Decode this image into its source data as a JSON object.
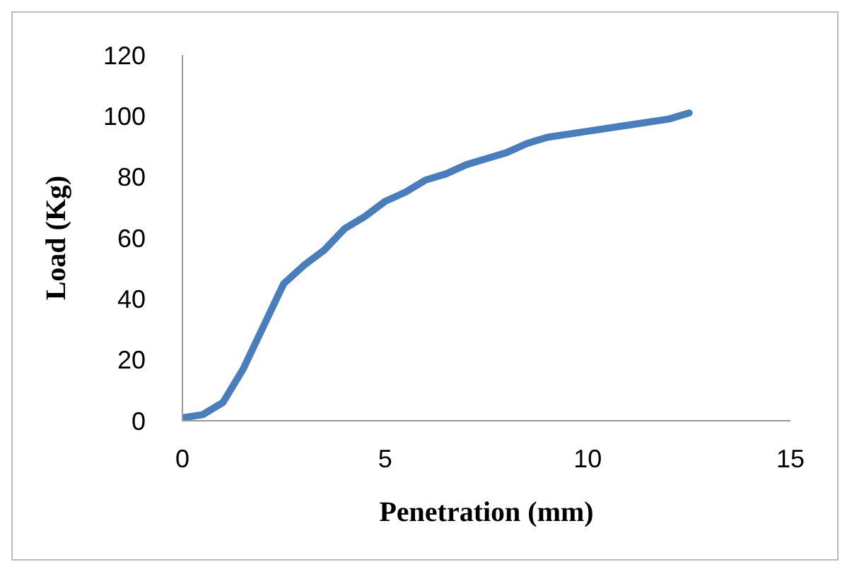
{
  "chart_data": {
    "type": "line",
    "xlabel": "Penetration (mm)",
    "ylabel": "Load (Kg)",
    "x": [
      0,
      0.5,
      1,
      1.5,
      2,
      2.5,
      3,
      3.5,
      4,
      4.5,
      5,
      5.5,
      6,
      6.5,
      7,
      7.5,
      8,
      8.5,
      9,
      10,
      11,
      12,
      12.5
    ],
    "series": [
      {
        "color": "#4a7ebb",
        "values": [
          1,
          2,
          6,
          17,
          31,
          45,
          51,
          56,
          63,
          67,
          72,
          75,
          79,
          81,
          84,
          86,
          88,
          91,
          93,
          95,
          97,
          99,
          101
        ]
      }
    ],
    "xlim": [
      0,
      15
    ],
    "xticks": [
      0,
      5,
      10,
      15
    ],
    "ylim": [
      0,
      120
    ],
    "yticks": [
      0,
      20,
      40,
      60,
      80,
      100,
      120
    ],
    "grid": false,
    "legend": false,
    "marker": "none",
    "line_style": "solid"
  }
}
